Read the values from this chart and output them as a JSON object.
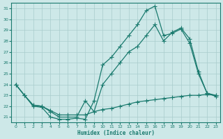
{
  "xlabel": "Humidex (Indice chaleur)",
  "xlim": [
    -0.5,
    23.5
  ],
  "ylim": [
    20.5,
    31.5
  ],
  "yticks": [
    21,
    22,
    23,
    24,
    25,
    26,
    27,
    28,
    29,
    30,
    31
  ],
  "xticks": [
    0,
    1,
    2,
    3,
    4,
    5,
    6,
    7,
    8,
    9,
    10,
    11,
    12,
    13,
    14,
    15,
    16,
    17,
    18,
    19,
    20,
    21,
    22,
    23
  ],
  "bg_color": "#cde8e8",
  "grid_color": "#a8cccc",
  "line_color": "#1a7a6e",
  "line1_x": [
    0,
    1,
    2,
    3,
    4,
    5,
    6,
    7,
    8,
    9,
    10,
    11,
    12,
    13,
    14,
    15,
    16,
    17,
    18,
    19,
    20,
    21,
    22,
    23
  ],
  "line1_y": [
    24.0,
    23.0,
    22.1,
    22.0,
    21.6,
    21.2,
    21.2,
    21.2,
    21.2,
    21.5,
    21.7,
    21.8,
    22.0,
    22.2,
    22.4,
    22.5,
    22.6,
    22.7,
    22.8,
    22.9,
    23.0,
    23.0,
    23.1,
    23.0
  ],
  "line2_x": [
    0,
    1,
    2,
    3,
    4,
    5,
    6,
    7,
    8,
    9,
    10,
    11,
    12,
    13,
    14,
    15,
    16,
    17,
    18,
    19,
    20,
    21,
    22,
    23
  ],
  "line2_y": [
    24.0,
    23.0,
    22.1,
    22.0,
    21.5,
    21.0,
    21.0,
    21.0,
    22.5,
    21.5,
    24.0,
    25.0,
    26.0,
    27.0,
    27.5,
    28.5,
    29.5,
    28.0,
    28.8,
    29.2,
    28.2,
    25.2,
    23.2,
    23.0
  ],
  "line3_x": [
    0,
    1,
    2,
    3,
    4,
    5,
    6,
    7,
    8,
    9,
    10,
    11,
    12,
    13,
    14,
    15,
    16,
    17,
    18,
    19,
    20,
    21,
    22,
    23
  ],
  "line3_y": [
    24.0,
    23.0,
    22.0,
    21.9,
    21.0,
    20.8,
    20.8,
    20.9,
    20.8,
    22.5,
    25.8,
    26.5,
    27.5,
    28.5,
    29.5,
    30.8,
    31.2,
    28.5,
    28.7,
    29.1,
    27.8,
    25.0,
    23.2,
    22.9
  ],
  "markersize": 2.2,
  "linewidth": 0.9
}
